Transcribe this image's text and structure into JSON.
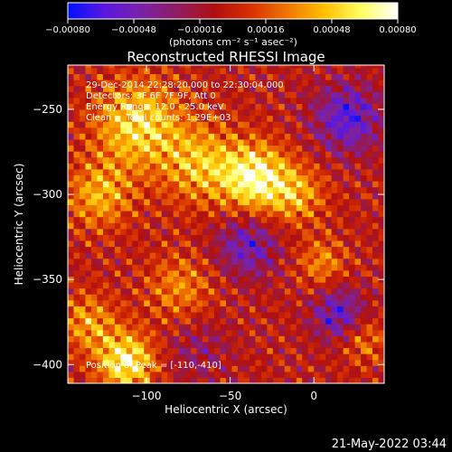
{
  "chart_data": {
    "type": "heatmap",
    "title": "Reconstructed RHESSI Image",
    "xlabel": "Heliocentric X (arcsec)",
    "ylabel": "Heliocentric Y (arcsec)",
    "xlim": [
      -147,
      42
    ],
    "ylim": [
      -411,
      -224
    ],
    "x_ticks": [
      -100,
      -50,
      0
    ],
    "x_tick_labels": [
      "−100",
      "−50",
      "0"
    ],
    "y_ticks": [
      -400,
      -350,
      -300,
      -250
    ],
    "y_tick_labels": [
      "−400",
      "−350",
      "−300",
      "−250"
    ],
    "colorbar": {
      "min": -0.0008,
      "max": 0.0008,
      "ticks": [
        -0.0008,
        -0.00048,
        -0.00016,
        0.00016,
        0.00048,
        0.0008
      ],
      "tick_labels": [
        "−0.00080",
        "−0.00048",
        "−0.00016",
        "0.00016",
        "0.00048",
        "0.00080"
      ],
      "unit_text": "(photons cm⁻² s⁻¹ asec⁻²)",
      "colors": [
        "#0010ff",
        "#5a18e0",
        "#7a22a8",
        "#901c60",
        "#b01010",
        "#d83000",
        "#f07800",
        "#ffc000",
        "#ffff60",
        "#ffffff"
      ]
    },
    "peak": {
      "x": -110,
      "y": -410
    },
    "blobs": [
      {
        "x": -35,
        "y": -290,
        "amp": 0.00075,
        "sigma": 14
      },
      {
        "x": -105,
        "y": -258,
        "amp": 0.00062,
        "sigma": 18
      },
      {
        "x": -68,
        "y": -282,
        "amp": 0.00048,
        "sigma": 16
      },
      {
        "x": -128,
        "y": -300,
        "amp": 0.00045,
        "sigma": 14
      },
      {
        "x": -112,
        "y": -398,
        "amp": 0.00072,
        "sigma": 12
      },
      {
        "x": -135,
        "y": -375,
        "amp": 0.0004,
        "sigma": 12
      },
      {
        "x": -10,
        "y": -300,
        "amp": 0.0004,
        "sigma": 12
      },
      {
        "x": 5,
        "y": -340,
        "amp": 0.00035,
        "sigma": 10
      },
      {
        "x": -80,
        "y": -355,
        "amp": 0.00035,
        "sigma": 14
      },
      {
        "x": 30,
        "y": -385,
        "amp": 0.0003,
        "sigma": 10
      },
      {
        "x": -40,
        "y": -330,
        "amp": -0.00045,
        "sigma": 13
      },
      {
        "x": 20,
        "y": -255,
        "amp": -0.00055,
        "sigma": 14
      },
      {
        "x": 15,
        "y": -370,
        "amp": -0.0005,
        "sigma": 11
      },
      {
        "x": -70,
        "y": -390,
        "amp": -0.0002,
        "sigma": 14
      }
    ]
  },
  "annotations": {
    "line1": "29-Dec-2014 22:28:20.000 to 22:30:04.000",
    "line2": "Detectors: 3F 6F 7F 9F, Att 0",
    "line3": "Energy Range: 12.0 - 25.0 keV",
    "line4": "Clean     Total counts: 1.29E+03",
    "peak_label": "Position of Peak = [-110,-410]"
  },
  "footer": {
    "timestamp": "21-May-2022 03:44"
  }
}
